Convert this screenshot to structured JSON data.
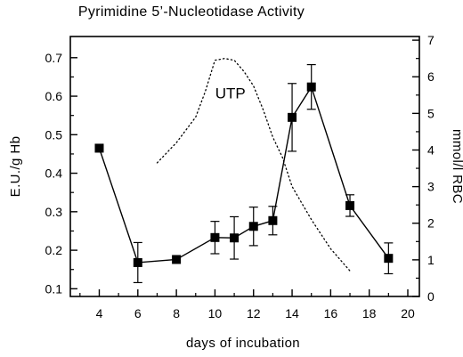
{
  "chart_data": {
    "type": "line",
    "title": "Pyrimidine 5’-Nucleotidase Activity",
    "xlabel": "days of incubation",
    "ylabel_left": "E.U./g Hb",
    "ylabel_right": "mmol/l RBC",
    "xlim": [
      2.5,
      20.6
    ],
    "ylim_left": [
      0.08,
      0.755
    ],
    "ylim_right": [
      0,
      7.1
    ],
    "x_ticks": [
      4,
      6,
      8,
      10,
      12,
      14,
      16,
      18,
      20
    ],
    "x_minor_ticks": [
      3,
      5,
      7,
      9,
      11,
      13,
      15,
      17,
      19
    ],
    "y_left_ticks": [
      "0.1",
      "0.2",
      "0.3",
      "0.4",
      "0.5",
      "0.6",
      "0.7"
    ],
    "y_right_ticks": [
      "0",
      "1",
      "2",
      "3",
      "4",
      "5",
      "6",
      "7"
    ],
    "grid": false,
    "series": [
      {
        "axis": "left",
        "style": "solid-square-markers",
        "x": [
          4,
          6,
          8,
          10,
          11,
          12,
          13,
          14,
          15,
          17,
          19
        ],
        "y": [
          0.465,
          0.168,
          0.176,
          0.233,
          0.232,
          0.262,
          0.277,
          0.545,
          0.624,
          0.316,
          0.179
        ],
        "err": [
          0.0,
          0.052,
          0.0,
          0.042,
          0.055,
          0.05,
          0.037,
          0.088,
          0.058,
          0.028,
          0.04
        ]
      },
      {
        "name": "UTP",
        "axis": "right",
        "style": "dotted",
        "x": [
          7,
          8,
          9,
          9.5,
          10,
          10.5,
          11,
          11.5,
          12,
          12.5,
          13,
          13.5,
          14,
          15,
          16,
          17
        ],
        "y": [
          3.65,
          4.2,
          4.9,
          5.6,
          6.45,
          6.5,
          6.45,
          6.15,
          5.75,
          5.1,
          4.35,
          3.8,
          3.0,
          2.1,
          1.3,
          0.7
        ]
      }
    ],
    "annotations": [
      {
        "text": "UTP",
        "x": 10.8,
        "y_right": 5.55
      }
    ]
  }
}
